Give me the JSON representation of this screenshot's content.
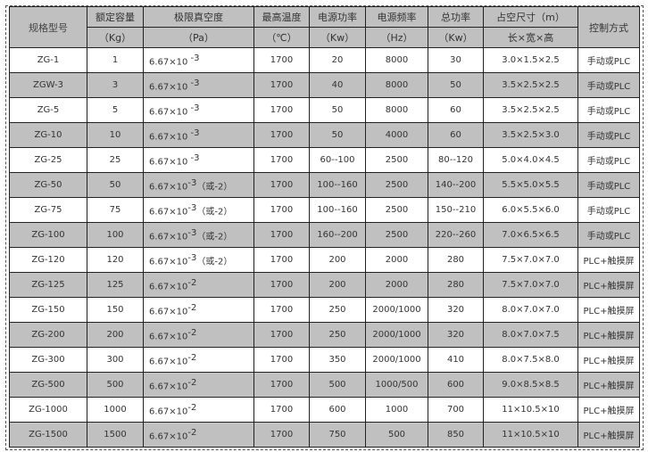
{
  "header": {
    "model": "规格型号",
    "cols": [
      {
        "title": "额定容量",
        "unit": "（Kg）"
      },
      {
        "title": "极限真空度",
        "unit": "（Pa）"
      },
      {
        "title": "最高温度",
        "unit": "（℃）"
      },
      {
        "title": "电源功率",
        "unit": "（Kw）"
      },
      {
        "title": "电源频率",
        "unit": "（Hz）"
      },
      {
        "title": "总功率",
        "unit": "（Kw）"
      },
      {
        "title": "占空尺寸（m）",
        "unit": "长×宽×高"
      }
    ],
    "control": "控制方式"
  },
  "rows": [
    {
      "model": "ZG-1",
      "cap": "1",
      "vac": "6.67×10",
      "exp": " -3",
      "alt": "",
      "temp": "1700",
      "power": "20",
      "freq": "8000",
      "total": "30",
      "size": "3.0×1.5×2.5",
      "ctrl": "手动或PLC"
    },
    {
      "model": "ZGW-3",
      "cap": "3",
      "vac": "6.67×10",
      "exp": " -3",
      "alt": "",
      "temp": "1700",
      "power": "40",
      "freq": "8000",
      "total": "50",
      "size": "3.5×2.5×2.5",
      "ctrl": "手动或PLC"
    },
    {
      "model": "ZG-5",
      "cap": "5",
      "vac": "6.67×10",
      "exp": " -3",
      "alt": "",
      "temp": "1700",
      "power": "50",
      "freq": "8000",
      "total": "60",
      "size": "3.5×2.5×2.5",
      "ctrl": "手动或PLC"
    },
    {
      "model": "ZG-10",
      "cap": "10",
      "vac": "6.67×10",
      "exp": " -3",
      "alt": "",
      "temp": "1700",
      "power": "50",
      "freq": "4000",
      "total": "60",
      "size": "3.5×2.5×3.0",
      "ctrl": "手动或PLC"
    },
    {
      "model": "ZG-25",
      "cap": "25",
      "vac": "6.67×10",
      "exp": " -3",
      "alt": "",
      "temp": "1700",
      "power": "60--100",
      "freq": "2500",
      "total": "80--120",
      "size": "5.0×4.0×4.5",
      "ctrl": "手动或PLC"
    },
    {
      "model": "ZG-50",
      "cap": "50",
      "vac": "6.67×10",
      "exp": "-3",
      "alt": "（或-2）",
      "temp": "1700",
      "power": "100--160",
      "freq": "2500",
      "total": "140--200",
      "size": "5.5×5.0×5.5",
      "ctrl": "手动或PLC"
    },
    {
      "model": "ZG-75",
      "cap": "75",
      "vac": "6.67×10",
      "exp": "-3",
      "alt": "（或-2）",
      "temp": "1700",
      "power": "100--160",
      "freq": "2500",
      "total": "150--210",
      "size": "6.0×5.5×6.0",
      "ctrl": "手动或PLC"
    },
    {
      "model": "ZG-100",
      "cap": "100",
      "vac": "6.67×10",
      "exp": "-3",
      "alt": "（或-2）",
      "temp": "1700",
      "power": "160--200",
      "freq": "2500",
      "total": "220--260",
      "size": "7.0×6.5×6.5",
      "ctrl": "手动或PLC"
    },
    {
      "model": "ZG-120",
      "cap": "120",
      "vac": "6.67×10",
      "exp": "-3",
      "alt": "（或-2）",
      "temp": "1700",
      "power": "200",
      "freq": "2000",
      "total": "280",
      "size": "7.5×7.0×7.0",
      "ctrl": "PLC+触摸屏"
    },
    {
      "model": "ZG-125",
      "cap": "125",
      "vac": "6.67×10",
      "exp": "-2",
      "alt": "",
      "temp": "1700",
      "power": "200",
      "freq": "2000",
      "total": "280",
      "size": "7.5×7.0×7.0",
      "ctrl": "PLC+触摸屏"
    },
    {
      "model": "ZG-150",
      "cap": "150",
      "vac": "6.67×10",
      "exp": "-2",
      "alt": "",
      "temp": "1700",
      "power": "250",
      "freq": "2000/1000",
      "total": "320",
      "size": "8.0×7.0×7.0",
      "ctrl": "PLC+触摸屏"
    },
    {
      "model": "ZG-200",
      "cap": "200",
      "vac": "6.67×10",
      "exp": "-2",
      "alt": "",
      "temp": "1700",
      "power": "250",
      "freq": "2000/1000",
      "total": "320",
      "size": "8.0×7.0×7.5",
      "ctrl": "PLC+触摸屏"
    },
    {
      "model": "ZG-300",
      "cap": "300",
      "vac": "6.67×10",
      "exp": "-2",
      "alt": "",
      "temp": "1700",
      "power": "350",
      "freq": "2000/1000",
      "total": "410",
      "size": "8.0×7.5×8.0",
      "ctrl": "PLC+触摸屏"
    },
    {
      "model": "ZG-500",
      "cap": "500",
      "vac": "6.67×10",
      "exp": "-2",
      "alt": "",
      "temp": "1700",
      "power": "500",
      "freq": "1000/500",
      "total": "600",
      "size": "9.0×8.5×8.5",
      "ctrl": "PLC+触摸屏"
    },
    {
      "model": "ZG-1000",
      "cap": "1000",
      "vac": "6.67×10",
      "exp": "-2",
      "alt": "",
      "temp": "1700",
      "power": "600",
      "freq": "1000",
      "total": "700",
      "size": "11×10.5×10",
      "ctrl": "PLC+触摸屏"
    },
    {
      "model": "ZG-1500",
      "cap": "1500",
      "vac": "6.67×10",
      "exp": "-2",
      "alt": "",
      "temp": "1700",
      "power": "750",
      "freq": "500",
      "total": "850",
      "size": "11×10.5×10",
      "ctrl": "PLC+触摸屏"
    }
  ]
}
